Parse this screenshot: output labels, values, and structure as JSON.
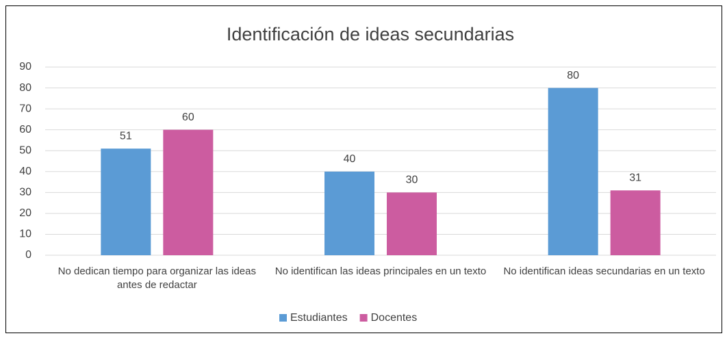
{
  "chart_data": {
    "type": "bar",
    "title": "Identificación de ideas secundarias",
    "categories": [
      "No dedican tiempo para organizar las ideas antes de redactar",
      "No identifican las ideas principales en un texto",
      "No identifican ideas secundarias en un texto"
    ],
    "series": [
      {
        "name": "Estudiantes",
        "color": "#5b9bd5",
        "values": [
          51,
          40,
          80
        ]
      },
      {
        "name": "Docentes",
        "color": "#cc5ca0",
        "values": [
          60,
          30,
          31
        ]
      }
    ],
    "ylim": [
      0,
      90
    ],
    "yticks": [
      0,
      10,
      20,
      30,
      40,
      50,
      60,
      70,
      80,
      90
    ],
    "grid": true,
    "legend": "bottom"
  }
}
